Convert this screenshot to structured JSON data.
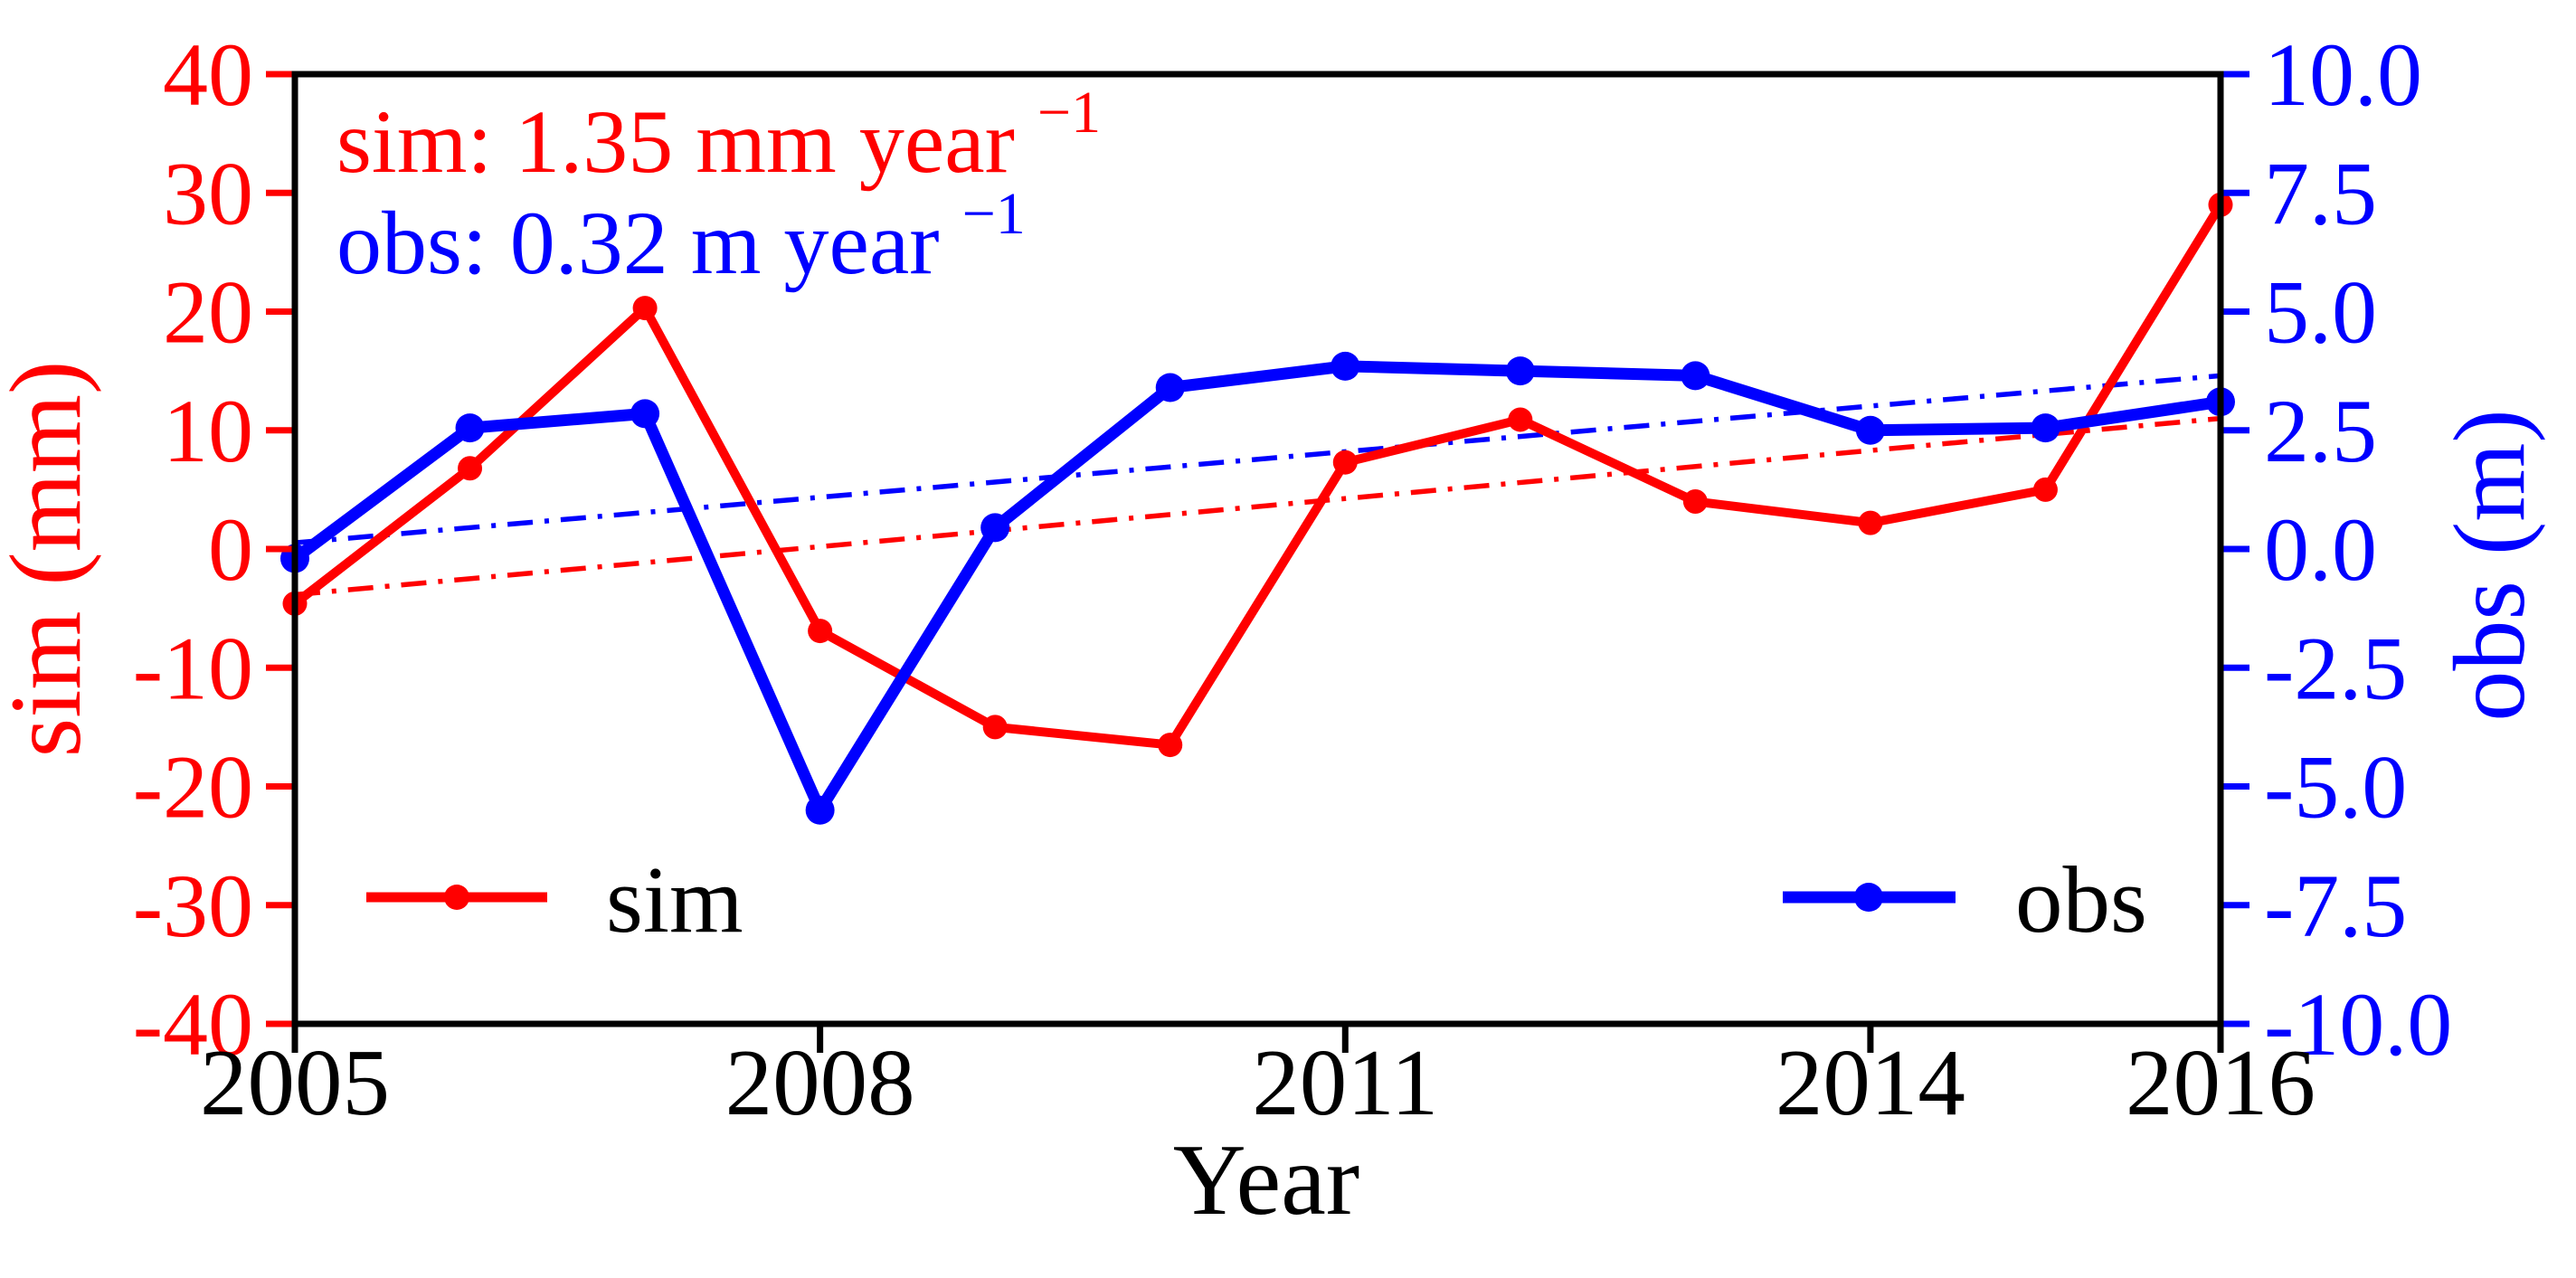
{
  "figure": {
    "xlabel": "Year",
    "ylabel_left": "sim (mm)",
    "ylabel_right": "obs (m)",
    "annotation_sim": {
      "text": "sim: 1.35 mm year",
      "sup": "−1"
    },
    "annotation_obs": {
      "text": "obs: 0.32 m year",
      "sup": "−1"
    },
    "legend": {
      "sim": "sim",
      "obs": "obs"
    },
    "colors": {
      "sim": "#ff0000",
      "obs": "#0000ff",
      "axis": "#000000"
    }
  },
  "chart_data": {
    "type": "line",
    "title": "",
    "xlabel": "Year",
    "ylabel_left": "sim (mm)",
    "ylabel_right": "obs (m)",
    "x": [
      2005,
      2006,
      2007,
      2008,
      2009,
      2010,
      2011,
      2012,
      2013,
      2014,
      2015,
      2016
    ],
    "xlim": [
      2005,
      2016
    ],
    "x_tick_years": [
      2005,
      2008,
      2011,
      2014,
      2016
    ],
    "x_tick_labels": [
      "2005",
      "2008",
      "2011",
      "2014",
      "2016"
    ],
    "ylim_left": [
      -40,
      40
    ],
    "ylim_right": [
      -10,
      10
    ],
    "y_ticks_left": [
      "40",
      "30",
      "20",
      "10",
      "0",
      "-10",
      "-20",
      "-30",
      "-40"
    ],
    "y_ticks_right": [
      "10.0",
      "7.5",
      "5.0",
      "2.5",
      "0.0",
      "-2.5",
      "-5.0",
      "-7.5",
      "-10.0"
    ],
    "grid": false,
    "legend_position": "inside-bottom",
    "series": [
      {
        "name": "sim",
        "axis": "left",
        "unit": "mm",
        "color": "#ff0000",
        "values": [
          -4.6,
          6.8,
          20.3,
          -6.9,
          -15.0,
          -16.5,
          7.3,
          10.9,
          4.0,
          2.2,
          5.0,
          29.0
        ],
        "trend_line": {
          "start_2005": -3.85,
          "end_2016": 11.0,
          "rate_label": "1.35 mm year-1"
        }
      },
      {
        "name": "obs",
        "axis": "right",
        "unit": "m",
        "color": "#0000ff",
        "values": [
          -0.2,
          2.55,
          2.85,
          -5.5,
          0.45,
          3.4,
          3.85,
          3.75,
          3.65,
          2.5,
          2.55,
          3.1
        ],
        "trend_line": {
          "start_2005": 0.13,
          "end_2016": 3.65,
          "rate_label": "0.32 m year-1"
        }
      }
    ]
  }
}
